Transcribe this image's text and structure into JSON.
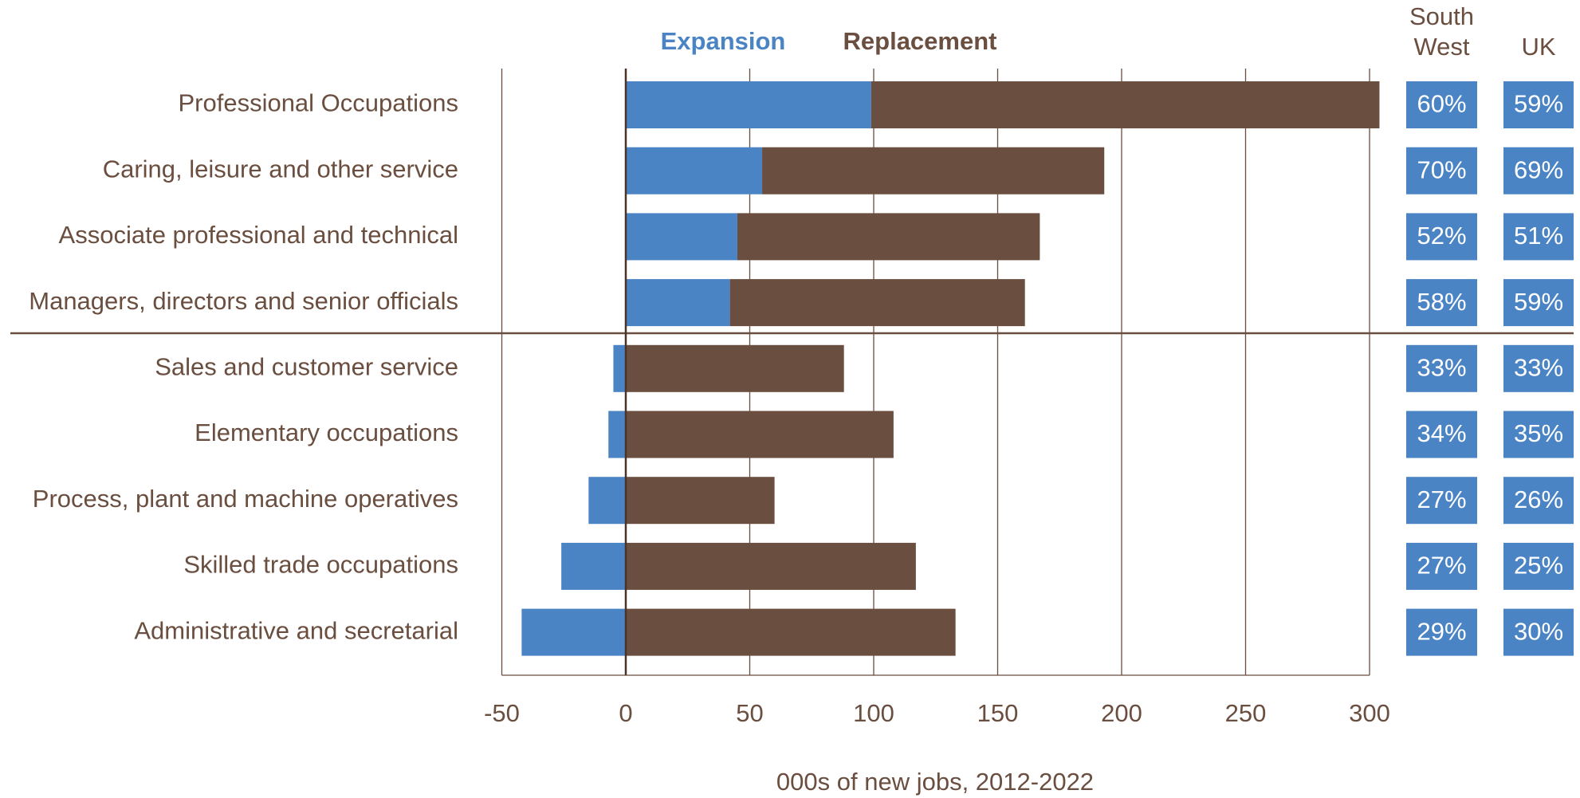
{
  "chart_data": {
    "type": "bar",
    "orientation": "horizontal",
    "stacked": true,
    "categories": [
      "Professional Occupations",
      "Caring, leisure and other service",
      "Associate professional and technical",
      "Managers, directors and senior officials",
      "Sales and customer service",
      "Elementary occupations",
      "Process, plant and machine operatives",
      "Skilled trade occupations",
      "Administrative and secretarial"
    ],
    "series": [
      {
        "name": "Expansion",
        "color": "#4a84c4",
        "values": [
          99,
          55,
          45,
          42,
          -5,
          -7,
          -15,
          -26,
          -42
        ]
      },
      {
        "name": "Replacement",
        "color": "#6a4e3f",
        "values": [
          205,
          138,
          122,
          119,
          88,
          108,
          60,
          117,
          133
        ]
      }
    ],
    "xlim": [
      -50,
      300
    ],
    "xticks": [
      -50,
      0,
      50,
      100,
      150,
      200,
      250,
      300
    ],
    "xlabel": "000s of new jobs, 2012-2022",
    "grid": true,
    "columns": [
      {
        "name": "South West",
        "values": [
          "60%",
          "70%",
          "52%",
          "58%",
          "33%",
          "34%",
          "27%",
          "27%",
          "29%"
        ]
      },
      {
        "name": "UK",
        "values": [
          "59%",
          "69%",
          "51%",
          "59%",
          "33%",
          "35%",
          "26%",
          "25%",
          "30%"
        ]
      }
    ]
  }
}
